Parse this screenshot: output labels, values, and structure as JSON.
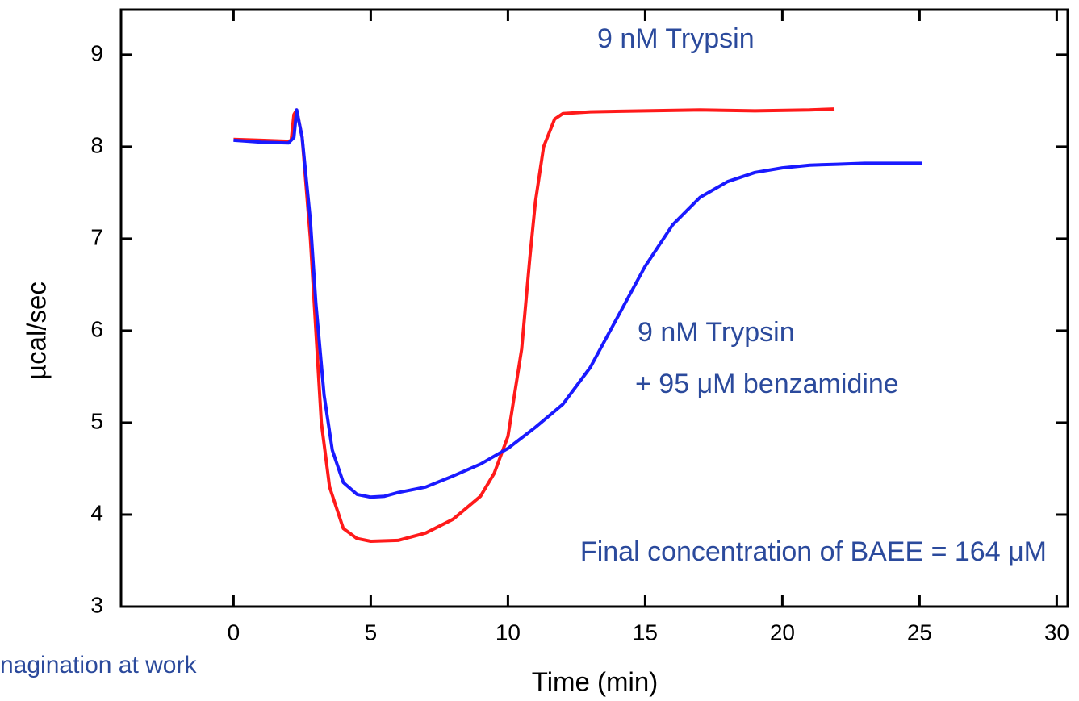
{
  "chart_data": {
    "type": "line",
    "xlabel": "Time (min)",
    "ylabel": "µcal/sec",
    "xlim": [
      -4.1,
      30.4
    ],
    "ylim": [
      3,
      9.49
    ],
    "xticks": [
      0,
      5,
      10,
      15,
      20,
      25,
      30
    ],
    "yticks": [
      3,
      4,
      5,
      6,
      7,
      8,
      9
    ],
    "annotations": [
      "9 nM Trypsin",
      "9 nM Trypsin",
      "+ 95 μM benzamidine",
      "Final concentration of BAEE = 164 μM"
    ],
    "footer": "nagination at work",
    "series": [
      {
        "name": "9 nM Trypsin",
        "color": "#ff1a1a",
        "x": [
          0,
          1,
          2,
          2.1,
          2.2,
          2.3,
          2.5,
          2.8,
          3.0,
          3.2,
          3.5,
          4,
          4.5,
          5,
          6,
          7,
          8,
          9,
          9.5,
          10,
          10.5,
          10.8,
          11,
          11.3,
          11.7,
          12,
          13,
          15,
          17,
          19,
          21,
          21.9
        ],
        "values": [
          8.08,
          8.07,
          8.06,
          8.07,
          8.35,
          8.4,
          8.1,
          7.0,
          6.0,
          5.0,
          4.3,
          3.85,
          3.74,
          3.71,
          3.72,
          3.8,
          3.95,
          4.2,
          4.45,
          4.85,
          5.8,
          6.8,
          7.4,
          8.0,
          8.3,
          8.36,
          8.38,
          8.39,
          8.4,
          8.39,
          8.4,
          8.41
        ]
      },
      {
        "name": "9 nM Trypsin + 95 μM benzamidine",
        "color": "#1a1aff",
        "x": [
          0,
          1,
          2,
          2.2,
          2.3,
          2.5,
          2.8,
          3.0,
          3.3,
          3.6,
          4,
          4.5,
          5,
          5.5,
          6,
          7,
          8,
          9,
          10,
          11,
          12,
          13,
          14,
          15,
          16,
          17,
          18,
          19,
          20,
          21,
          22,
          23,
          24,
          25.1
        ],
        "values": [
          8.07,
          8.05,
          8.04,
          8.1,
          8.4,
          8.1,
          7.2,
          6.3,
          5.3,
          4.7,
          4.35,
          4.22,
          4.19,
          4.2,
          4.24,
          4.3,
          4.42,
          4.55,
          4.72,
          4.95,
          5.2,
          5.6,
          6.15,
          6.7,
          7.15,
          7.45,
          7.62,
          7.72,
          7.77,
          7.8,
          7.81,
          7.82,
          7.82,
          7.82
        ]
      }
    ]
  }
}
